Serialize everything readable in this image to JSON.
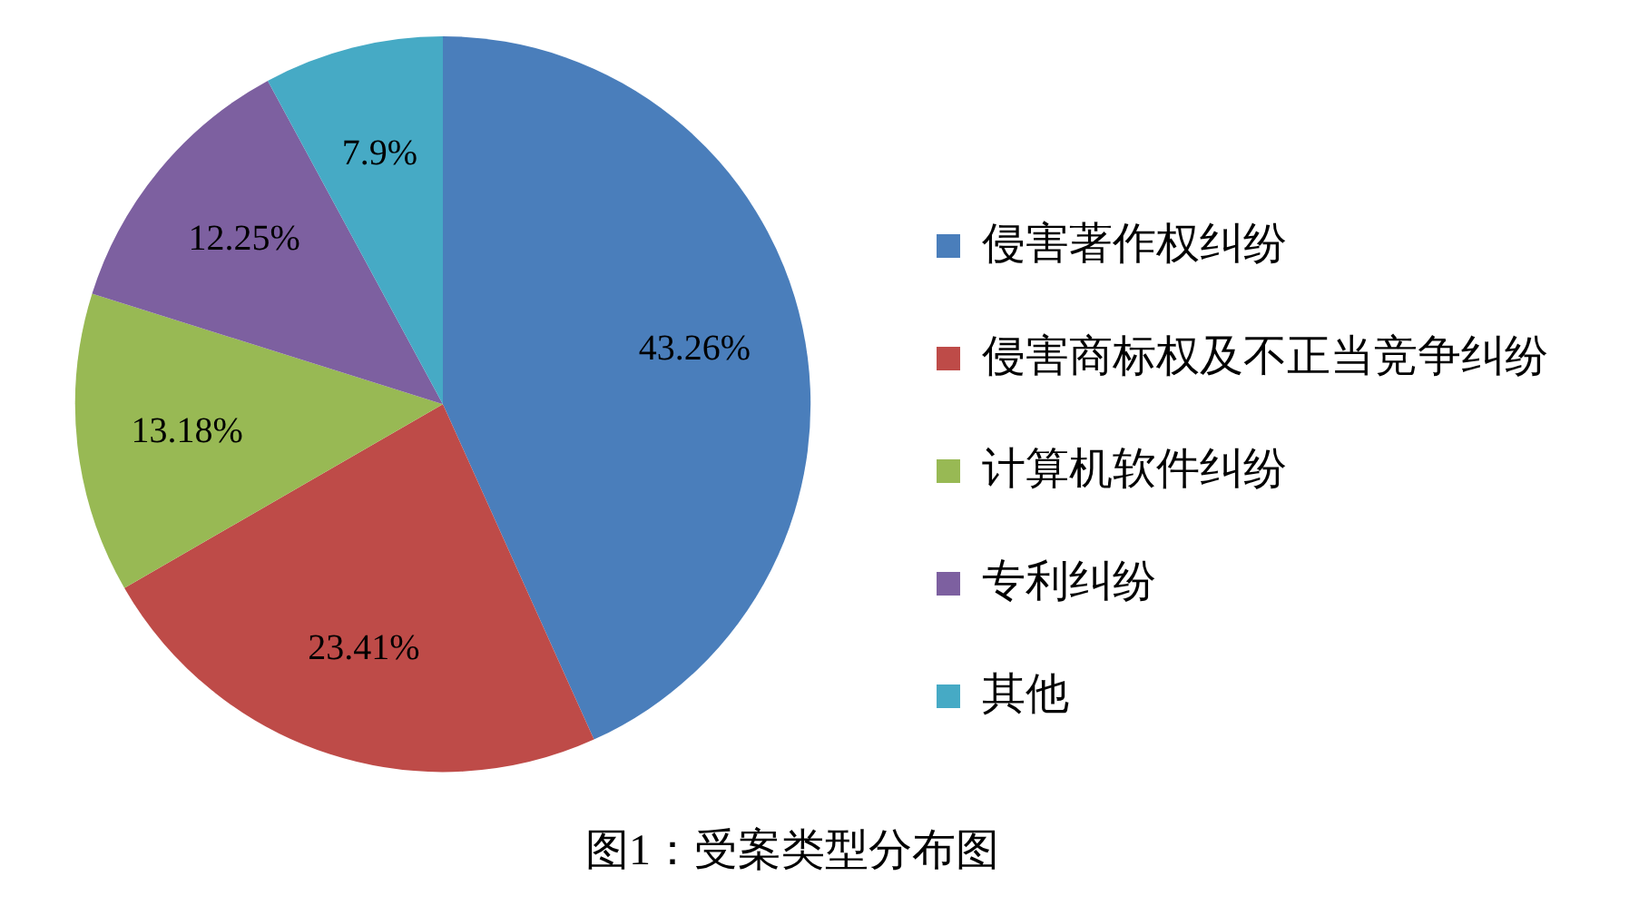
{
  "chart_data": {
    "type": "pie",
    "title": "图1：受案类型分布图",
    "categories": [
      "侵害著作权纠纷",
      "侵害商标权及不正当竞争纠纷",
      "计算机软件纠纷",
      "专利纠纷",
      "其他"
    ],
    "values": [
      43.26,
      23.41,
      13.18,
      12.25,
      7.9
    ],
    "colors": [
      "#4a7ebb",
      "#be4b48",
      "#98b954",
      "#7d60a0",
      "#46aac5"
    ],
    "value_labels": [
      "43.26%",
      "23.41%",
      "13.18%",
      "12.25%",
      "7.9%"
    ],
    "legend": "right"
  }
}
